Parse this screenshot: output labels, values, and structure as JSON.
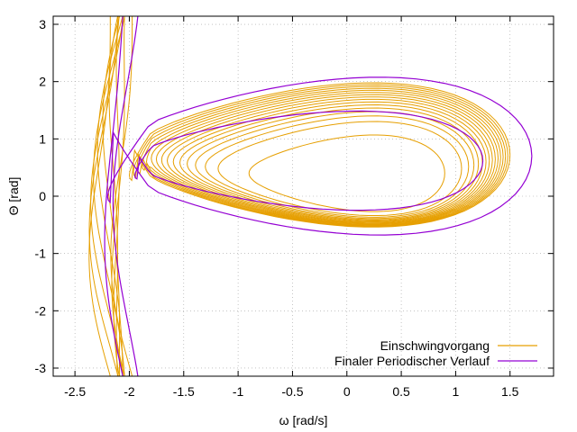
{
  "chart_data": {
    "type": "line",
    "title": "",
    "xlabel": "ω [rad/s]",
    "ylabel": "Θ [rad]",
    "xlim": [
      -2.7,
      1.9
    ],
    "ylim": [
      -3.1416,
      3.1416
    ],
    "x_ticks": [
      -2.5,
      -2,
      -1.5,
      -1,
      -0.5,
      0,
      0.5,
      1,
      1.5
    ],
    "x_tick_labels": [
      "-2.5",
      "-2",
      "-1.5",
      "-1",
      "-0.5",
      "0",
      "0.5",
      "1",
      "1.5"
    ],
    "y_ticks": [
      -3,
      -2,
      -1,
      0,
      1,
      2,
      3
    ],
    "y_tick_labels": [
      "-3",
      "-2",
      "-1",
      "0",
      "1",
      "2",
      "3"
    ],
    "grid": true,
    "legend_position": "bottom-right",
    "colors": {
      "transient": "#E69F00",
      "periodic": "#9400D3"
    },
    "series": [
      {
        "name": "Einschwingvorgang",
        "color": "#E69F00",
        "kind": "transient",
        "turns": 16,
        "params": {
          "x_center": [
            0.0,
            -0.25
          ],
          "x_amplitude": [
            0.9,
            1.75
          ],
          "y_center": [
            0.4,
            0.72
          ],
          "y_amplitude": [
            0.85,
            1.6
          ]
        },
        "start": [
          0.75,
          0.0
        ],
        "left_wrap_x": [
          -2.15,
          -1.95
        ]
      },
      {
        "name": "Finaler Periodischer Verlauf",
        "color": "#9400D3",
        "kind": "periodic",
        "loops": [
          {
            "x_center": -0.25,
            "x_amplitude": 1.95,
            "y_center": 0.7,
            "y_amplitude": 1.75
          },
          {
            "x_center": -0.35,
            "x_amplitude": 1.6,
            "y_center": 0.62,
            "y_amplitude": 1.1
          }
        ],
        "left_wrap_x": [
          -2.05,
          -1.95
        ]
      }
    ]
  }
}
